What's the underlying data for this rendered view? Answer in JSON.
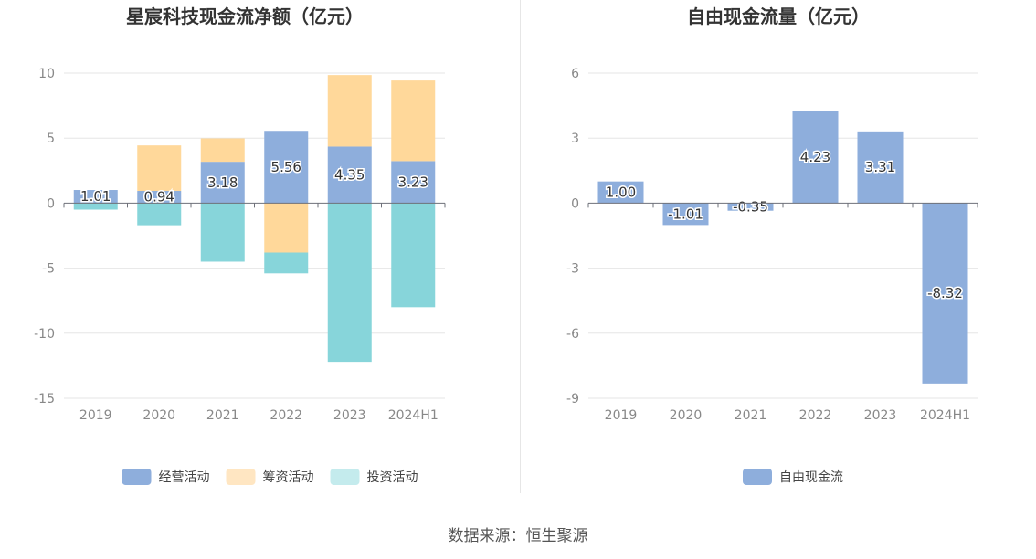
{
  "chart_data": [
    {
      "type": "bar",
      "stacked": true,
      "title": "星宸科技现金流净额（亿元）",
      "categories": [
        "2019",
        "2020",
        "2021",
        "2022",
        "2023",
        "2024H1"
      ],
      "series": [
        {
          "name": "经营活动",
          "color": "#8eaedc",
          "values": [
            1.01,
            0.94,
            3.18,
            5.56,
            4.35,
            3.23
          ],
          "labels": [
            "1.01",
            "0.94",
            "3.18",
            "5.56",
            "4.35",
            "3.23"
          ]
        },
        {
          "name": "筹资活动",
          "color": "#ffd89a",
          "legend_color": "#ffe6c2",
          "values": [
            0,
            3.5,
            1.8,
            -3.8,
            5.5,
            6.2
          ]
        },
        {
          "name": "投资活动",
          "color": "#87d5da",
          "legend_color": "#c4ebed",
          "values": [
            -0.5,
            -1.7,
            -4.5,
            -1.6,
            -12.2,
            -8.0
          ]
        }
      ],
      "ylim": [
        -15,
        10
      ],
      "yticks": [
        10,
        5,
        0,
        -5,
        -10,
        -15
      ],
      "ytick_labels": [
        "10",
        "5",
        "0",
        "-5",
        "-10",
        "-15"
      ],
      "grid": true,
      "legend": "bottom-center"
    },
    {
      "type": "bar",
      "title": "自由现金流量（亿元）",
      "categories": [
        "2019",
        "2020",
        "2021",
        "2022",
        "2023",
        "2024H1"
      ],
      "series": [
        {
          "name": "自由现金流",
          "color": "#8eaedc",
          "values": [
            1.0,
            -1.01,
            -0.35,
            4.23,
            3.31,
            -8.32
          ],
          "labels": [
            "1.00",
            "-1.01",
            "-0.35",
            "4.23",
            "3.31",
            "-8.32"
          ]
        }
      ],
      "ylim": [
        -9,
        6
      ],
      "yticks": [
        6,
        3,
        0,
        -3,
        -6,
        -9
      ],
      "ytick_labels": [
        "6",
        "3",
        "0",
        "-3",
        "-6",
        "-9"
      ],
      "grid": true,
      "legend": "bottom-center"
    }
  ],
  "source": "数据来源：恒生聚源"
}
